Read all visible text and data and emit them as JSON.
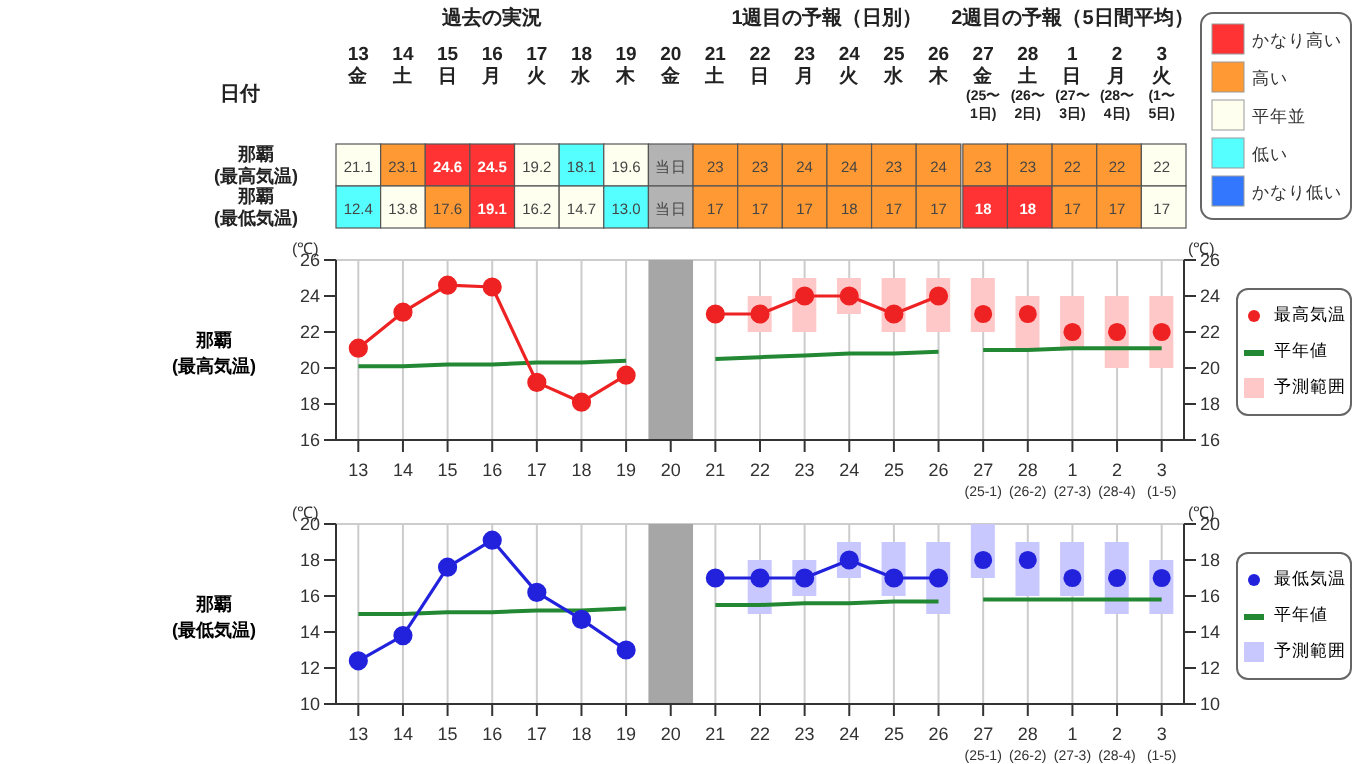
{
  "chart_data": [
    {
      "type": "heatmap",
      "xlabel": "日付",
      "annotations": [
        "過去の実況",
        "1週目の予報（日別）",
        "2週目の予報（5日間平均）"
      ],
      "categories": [
        "13\n金",
        "14\n土",
        "15\n日",
        "16\n月",
        "17\n火",
        "18\n水",
        "19\n木",
        "20\n金",
        "21\n土",
        "22\n日",
        "23\n月",
        "24\n火",
        "25\n水",
        "26\n木",
        "27\n金\n(25〜\n1日)",
        "28\n土\n(26〜\n2日)",
        "1\n日\n(27〜\n3日)",
        "2\n月\n(28〜\n4日)",
        "3\n火\n(1〜\n5日)"
      ],
      "y_categories": [
        "那覇\n(最高気温)",
        "那覇\n(最低気温)"
      ],
      "cells": [
        [
          21.1,
          23.1,
          24.6,
          24.5,
          19.2,
          18.1,
          19.6,
          null,
          23,
          23,
          24,
          24,
          23,
          24,
          23,
          23,
          22,
          22,
          22
        ],
        [
          12.4,
          13.8,
          17.6,
          19.1,
          16.2,
          14.7,
          13.0,
          null,
          17,
          17,
          17,
          18,
          17,
          17,
          18,
          18,
          17,
          17,
          17
        ]
      ],
      "cell_labels": [
        [
          "21.1",
          "23.1",
          "24.6",
          "24.5",
          "19.2",
          "18.1",
          "19.6",
          "当日",
          "23",
          "23",
          "24",
          "24",
          "23",
          "24",
          "23",
          "23",
          "22",
          "22",
          "22"
        ],
        [
          "12.4",
          "13.8",
          "17.6",
          "19.1",
          "16.2",
          "14.7",
          "13.0",
          "当日",
          "17",
          "17",
          "17",
          "18",
          "17",
          "17",
          "18",
          "18",
          "17",
          "17",
          "17"
        ]
      ],
      "colors": [
        [
          "#fffff0",
          "#ff9933",
          "#ff3333",
          "#ff3333",
          "#fffff0",
          "#55ffff",
          "#fffff0",
          "#b3b3b3",
          "#ff9933",
          "#ff9933",
          "#ff9933",
          "#ff9933",
          "#ff9933",
          "#ff9933",
          "#ff9933",
          "#ff9933",
          "#ff9933",
          "#ff9933",
          "#fffff0"
        ],
        [
          "#55ffff",
          "#fffff0",
          "#ff9933",
          "#ff3333",
          "#fffff0",
          "#fffff0",
          "#55ffff",
          "#b3b3b3",
          "#ff9933",
          "#ff9933",
          "#ff9933",
          "#ff9933",
          "#ff9933",
          "#ff9933",
          "#ff3333",
          "#ff3333",
          "#ff9933",
          "#ff9933",
          "#fffff0"
        ]
      ]
    },
    {
      "type": "line",
      "annotations": [
        "那覇\n(最高気温)"
      ],
      "ylabel": "(℃)",
      "y2label": "(℃)",
      "grid": true,
      "legend": "right",
      "marker": "circle",
      "categories": [
        "13",
        "14",
        "15",
        "16",
        "17",
        "18",
        "19",
        "20",
        "21",
        "22",
        "23",
        "24",
        "25",
        "26",
        "27\n(25-1)",
        "28\n(26-2)",
        "1\n(27-3)",
        "2\n(28-4)",
        "3\n(1-5)"
      ],
      "ylim": [
        16,
        26
      ],
      "yticks": [
        16,
        18,
        20,
        22,
        24,
        26
      ],
      "y2lim": [
        16,
        26
      ],
      "y2ticks": [
        16,
        18,
        20,
        22,
        24,
        26
      ],
      "bands": [
        {
          "axis": "x",
          "from": "20",
          "to": "20",
          "color": "#a6a6a6"
        }
      ],
      "series": [
        {
          "name": "予測範囲",
          "type": "bar",
          "color": "#ffc8c8",
          "base": [
            null,
            null,
            null,
            null,
            null,
            null,
            null,
            null,
            null,
            22,
            22,
            23,
            22,
            22,
            22,
            21,
            21,
            20,
            20
          ],
          "values": [
            null,
            null,
            null,
            null,
            null,
            null,
            null,
            null,
            null,
            2,
            3,
            2,
            3,
            3,
            3,
            3,
            3,
            4,
            4
          ]
        },
        {
          "name": "平年値",
          "type": "line",
          "marker": "none",
          "color": "#228833",
          "values": [
            20.1,
            20.1,
            20.2,
            20.2,
            20.3,
            20.3,
            20.4,
            null,
            20.5,
            20.6,
            20.7,
            20.8,
            20.8,
            20.9,
            null,
            null,
            null,
            null,
            null
          ]
        },
        {
          "type": "line",
          "marker": "none",
          "color": "#228833",
          "values": [
            null,
            null,
            null,
            null,
            null,
            null,
            null,
            null,
            null,
            null,
            null,
            null,
            null,
            null,
            21.0,
            21.0,
            21.1,
            21.1,
            21.1
          ]
        },
        {
          "name": "最高気温",
          "type": "line",
          "color": "#ee2222",
          "values": [
            21.1,
            23.1,
            24.6,
            24.5,
            19.2,
            18.1,
            19.6,
            null,
            23,
            23,
            24,
            24,
            23,
            24,
            null,
            null,
            null,
            null,
            null
          ]
        },
        {
          "type": "scatter",
          "color": "#ee2222",
          "values": [
            null,
            null,
            null,
            null,
            null,
            null,
            null,
            null,
            null,
            null,
            null,
            null,
            null,
            null,
            23,
            23,
            22,
            22,
            22
          ]
        }
      ]
    },
    {
      "type": "line",
      "annotations": [
        "那覇\n(最低気温)"
      ],
      "ylabel": "(℃)",
      "y2label": "(℃)",
      "grid": true,
      "legend": "right",
      "marker": "circle",
      "categories": [
        "13",
        "14",
        "15",
        "16",
        "17",
        "18",
        "19",
        "20",
        "21",
        "22",
        "23",
        "24",
        "25",
        "26",
        "27\n(25-1)",
        "28\n(26-2)",
        "1\n(27-3)",
        "2\n(28-4)",
        "3\n(1-5)"
      ],
      "ylim": [
        10,
        20
      ],
      "yticks": [
        10,
        12,
        14,
        16,
        18,
        20
      ],
      "y2lim": [
        10,
        20
      ],
      "y2ticks": [
        10,
        12,
        14,
        16,
        18,
        20
      ],
      "bands": [
        {
          "axis": "x",
          "from": "20",
          "to": "20",
          "color": "#a6a6a6"
        }
      ],
      "series": [
        {
          "name": "予測範囲",
          "type": "bar",
          "color": "#c8c8ff",
          "base": [
            null,
            null,
            null,
            null,
            null,
            null,
            null,
            null,
            null,
            15,
            16,
            17,
            16,
            15,
            17,
            16,
            16,
            15,
            15
          ],
          "values": [
            null,
            null,
            null,
            null,
            null,
            null,
            null,
            null,
            null,
            3,
            2,
            2,
            3,
            4,
            3,
            3,
            3,
            4,
            3
          ]
        },
        {
          "name": "平年値",
          "type": "line",
          "marker": "none",
          "color": "#228833",
          "values": [
            15.0,
            15.0,
            15.1,
            15.1,
            15.2,
            15.2,
            15.3,
            null,
            15.5,
            15.5,
            15.6,
            15.6,
            15.7,
            15.7,
            null,
            null,
            null,
            null,
            null
          ]
        },
        {
          "type": "line",
          "marker": "none",
          "color": "#228833",
          "values": [
            null,
            null,
            null,
            null,
            null,
            null,
            null,
            null,
            null,
            null,
            null,
            null,
            null,
            null,
            15.8,
            15.8,
            15.8,
            15.8,
            15.8
          ]
        },
        {
          "name": "最低気温",
          "type": "line",
          "color": "#2222dd",
          "values": [
            12.4,
            13.8,
            17.6,
            19.1,
            16.2,
            14.7,
            13.0,
            null,
            17,
            17,
            17,
            18,
            17,
            17,
            null,
            null,
            null,
            null,
            null
          ]
        },
        {
          "type": "scatter",
          "color": "#2222dd",
          "values": [
            null,
            null,
            null,
            null,
            null,
            null,
            null,
            null,
            null,
            null,
            null,
            null,
            null,
            null,
            18,
            18,
            17,
            17,
            17
          ]
        }
      ]
    },
    {
      "type": "other",
      "categories": [
        "かなり高い",
        "高い",
        "平年並",
        "低い",
        "かなり低い"
      ],
      "colors": [
        "#ff3333",
        "#ff9933",
        "#fffff0",
        "#55ffff",
        "#3377ff"
      ]
    }
  ]
}
